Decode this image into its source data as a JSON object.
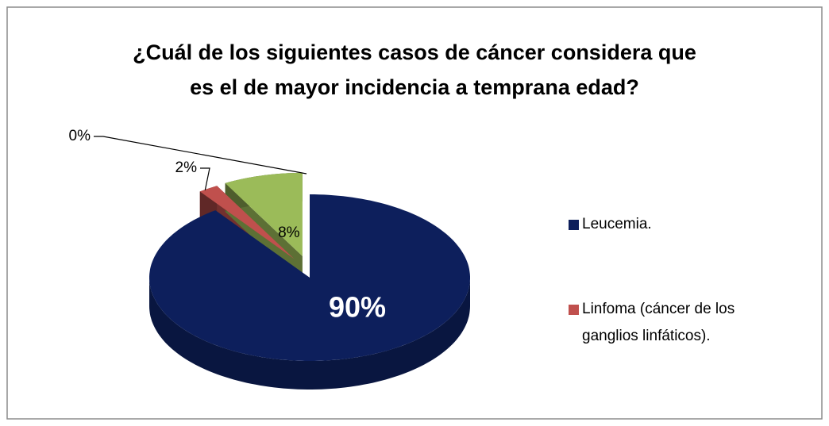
{
  "chart_data": {
    "type": "pie",
    "title": "¿Cuál de los siguientes casos de cáncer considera que es el de mayor incidencia a temprana edad?",
    "categories": [
      "Leucemia.",
      "Linfoma (cáncer de los ganglios linfáticos).",
      null,
      null
    ],
    "values": [
      90,
      2,
      8,
      0
    ],
    "value_labels": [
      "90%",
      "2%",
      "8%",
      "0%"
    ],
    "colors": [
      "#0d1f5c",
      "#c0504d",
      "#9bbb59",
      "#8064a2"
    ]
  }
}
